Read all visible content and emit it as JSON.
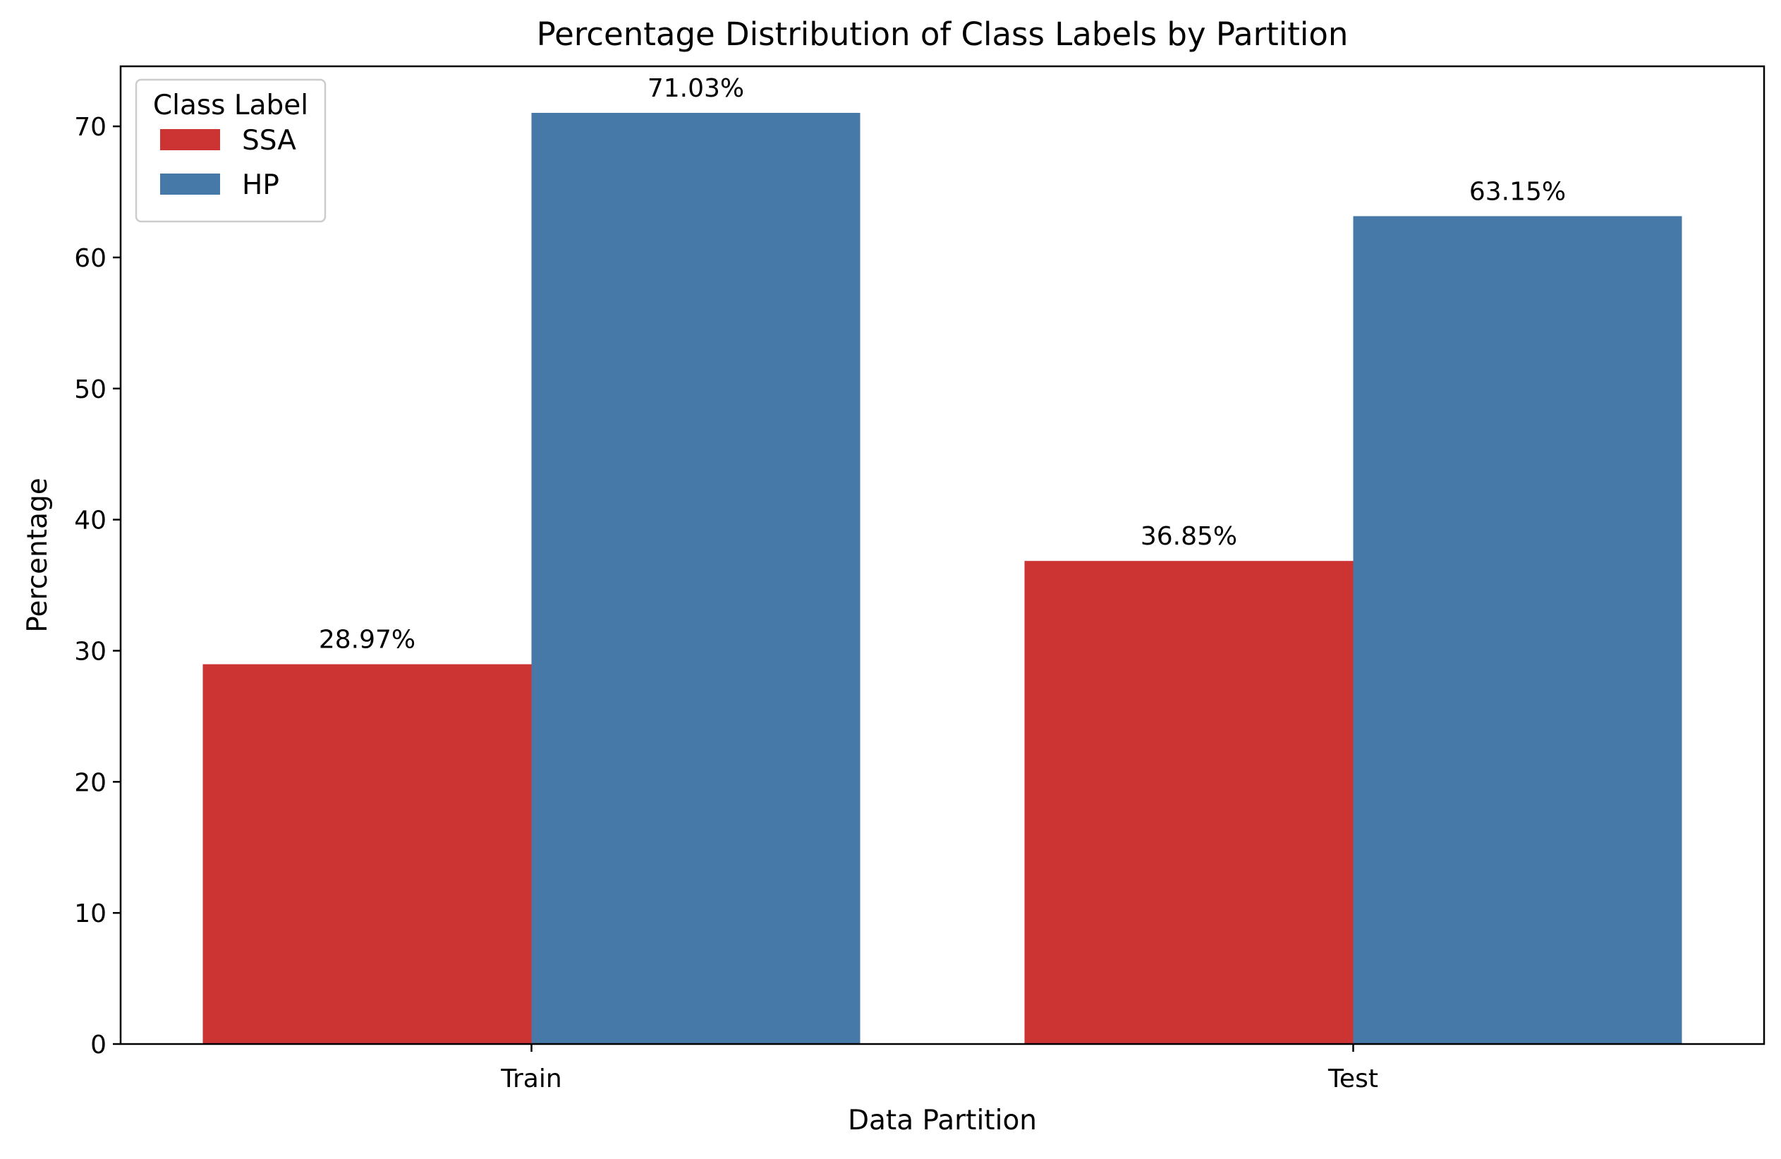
{
  "chart_data": {
    "type": "bar",
    "title": "Percentage Distribution of Class Labels by Partition",
    "xlabel": "Data Partition",
    "ylabel": "Percentage",
    "categories": [
      "Train",
      "Test"
    ],
    "series": [
      {
        "name": "SSA",
        "color": "#cc3333",
        "values": [
          28.97,
          36.85
        ],
        "labels": [
          "28.97%",
          "36.85%"
        ]
      },
      {
        "name": "HP",
        "color": "#4679a8",
        "values": [
          71.03,
          63.15
        ],
        "labels": [
          "71.03%",
          "63.15%"
        ]
      }
    ],
    "ylim": [
      0,
      74.58
    ],
    "yticks": [
      0,
      10,
      20,
      30,
      40,
      50,
      60,
      70
    ],
    "grid": false,
    "legend": {
      "title": "Class Label",
      "position": "top-left"
    }
  }
}
